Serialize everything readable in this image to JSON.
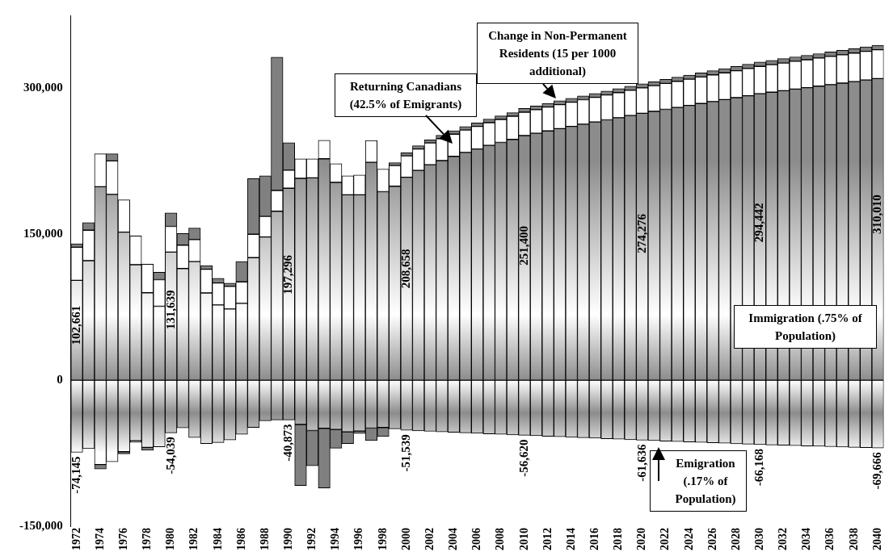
{
  "chart_data": {
    "type": "bar",
    "stacked": true,
    "categories": [
      "1972",
      null,
      "1974",
      null,
      "1976",
      null,
      "1978",
      null,
      "1980",
      null,
      "1982",
      null,
      "1984",
      null,
      "1986",
      null,
      "1988",
      null,
      "1990",
      null,
      "1992",
      null,
      "1994",
      null,
      "1996",
      null,
      "1998",
      null,
      "2000",
      null,
      "2002",
      null,
      "2004",
      null,
      "2006",
      null,
      "2008",
      null,
      "2010",
      null,
      "2012",
      null,
      "2014",
      null,
      "2016",
      null,
      "2018",
      null,
      "2020",
      null,
      "2022",
      null,
      "2024",
      null,
      "2026",
      null,
      "2028",
      null,
      "2030",
      null,
      "2032",
      null,
      "2034",
      null,
      "2036",
      null,
      "2038",
      null,
      "2040"
    ],
    "ylim": [
      -150000,
      375000
    ],
    "yticks": [
      {
        "value": -150000,
        "label": "-150,000"
      },
      0,
      {
        "value": 150000,
        "label": "150,000"
      },
      {
        "value": 300000,
        "label": "300,000"
      }
    ],
    "series": [
      {
        "name": "Immigration (.75% of Population)",
        "color": "#8c8c8c",
        "values": [
          102661,
          122900,
          198900,
          191000,
          152200,
          118700,
          89900,
          76000,
          131639,
          114800,
          122000,
          89700,
          77400,
          73200,
          79000,
          126000,
          147200,
          173700,
          197296,
          207500,
          208000,
          227600,
          203300,
          190500,
          190500,
          224000,
          193800,
          199400,
          208658,
          215600,
          221500,
          225700,
          230100,
          234100,
          237700,
          241300,
          244400,
          247500,
          251400,
          253800,
          256200,
          258600,
          260900,
          263200,
          265400,
          267600,
          269800,
          272000,
          274276,
          276300,
          278400,
          280400,
          282400,
          284400,
          286400,
          288400,
          290400,
          292400,
          294442,
          296000,
          297600,
          299200,
          300700,
          302200,
          303800,
          305300,
          306900,
          308500,
          310010
        ],
        "value_labels": [
          "102,661",
          null,
          null,
          null,
          null,
          null,
          null,
          null,
          "131,639",
          null,
          null,
          null,
          null,
          null,
          null,
          null,
          null,
          null,
          "197,296",
          null,
          null,
          null,
          null,
          null,
          null,
          null,
          null,
          null,
          "208,658",
          null,
          null,
          null,
          null,
          null,
          null,
          null,
          null,
          null,
          "251,400",
          null,
          null,
          null,
          null,
          null,
          null,
          null,
          null,
          null,
          "274,276",
          null,
          null,
          null,
          null,
          null,
          null,
          null,
          null,
          null,
          "294,442",
          null,
          null,
          null,
          null,
          null,
          null,
          null,
          null,
          null,
          "310,010"
        ]
      },
      {
        "name": "Returning Canadians (42.5% of Emigrants)",
        "color": "#ffffff",
        "values": [
          34000,
          31300,
          33800,
          34400,
          33200,
          29600,
          29300,
          27400,
          26500,
          24000,
          22600,
          24300,
          22600,
          23200,
          22100,
          24000,
          21200,
          21300,
          18600,
          20100,
          19600,
          19000,
          19300,
          19500,
          20400,
          22300,
          23200,
          21200,
          21900,
          22100,
          22300,
          22600,
          22800,
          23000,
          23200,
          23400,
          23600,
          23800,
          24100,
          24300,
          24500,
          24700,
          24900,
          25100,
          25300,
          25600,
          25800,
          26000,
          26200,
          26400,
          26600,
          26800,
          27000,
          27200,
          27400,
          27500,
          27700,
          27900,
          28100,
          28300,
          28400,
          28600,
          28700,
          28900,
          29000,
          29200,
          29300,
          29500,
          29600
        ]
      },
      {
        "name": "Emigration (.17% of Population)",
        "color": "#8c8c8c",
        "values": [
          -74145,
          -70400,
          -86600,
          -83800,
          -73500,
          -62300,
          -69000,
          -68400,
          -54039,
          -48900,
          -58900,
          -65100,
          -64000,
          -61400,
          -55600,
          -48600,
          -41600,
          -40800,
          -40873,
          -45500,
          -51700,
          -49400,
          -50600,
          -53100,
          -52200,
          -49200,
          -48600,
          -49900,
          -51539,
          -52050,
          -52560,
          -53070,
          -53580,
          -54090,
          -54590,
          -55100,
          -55610,
          -56110,
          -56620,
          -57120,
          -57620,
          -58120,
          -58630,
          -59130,
          -59630,
          -60130,
          -60630,
          -61130,
          -61636,
          -62090,
          -62540,
          -63000,
          -63450,
          -63900,
          -64360,
          -64810,
          -65260,
          -65710,
          -66168,
          -66520,
          -66870,
          -67220,
          -67570,
          -67920,
          -68270,
          -68620,
          -68970,
          -69320,
          -69666
        ],
        "value_labels": [
          "-74,145",
          null,
          null,
          null,
          null,
          null,
          null,
          null,
          "-54,039",
          null,
          null,
          null,
          null,
          null,
          null,
          null,
          null,
          null,
          "-40,873",
          null,
          null,
          null,
          null,
          null,
          null,
          null,
          null,
          null,
          "-51,539",
          null,
          null,
          null,
          null,
          null,
          null,
          null,
          null,
          null,
          "-56,620",
          null,
          null,
          null,
          null,
          null,
          null,
          null,
          null,
          null,
          "-61,636",
          null,
          null,
          null,
          null,
          null,
          null,
          null,
          null,
          null,
          "-66,168",
          null,
          null,
          null,
          null,
          null,
          null,
          null,
          null,
          null,
          "-69,666"
        ]
      },
      {
        "name": "Change in Non-Permanent Residents (15 per 1000 additional)",
        "color": "#808080",
        "values": [
          3600,
          7800,
          -4700,
          7300,
          -2200,
          -1500,
          -3000,
          7500,
          13700,
          12000,
          11700,
          3900,
          4700,
          3300,
          20900,
          57200,
          41600,
          137000,
          28200,
          -62800,
          -36300,
          -61400,
          -19300,
          -12000,
          -2500,
          -12800,
          -9200,
          3000,
          3100,
          3200,
          3300,
          3400,
          3500,
          3500,
          3600,
          3600,
          3700,
          3700,
          3800,
          3800,
          3800,
          3900,
          3900,
          3900,
          4000,
          4000,
          4000,
          4100,
          4100,
          4100,
          4200,
          4200,
          4200,
          4300,
          4300,
          4300,
          4400,
          4400,
          4400,
          4400,
          4500,
          4500,
          4500,
          4500,
          4600,
          4600,
          4600,
          4600,
          4700
        ]
      }
    ]
  }
}
